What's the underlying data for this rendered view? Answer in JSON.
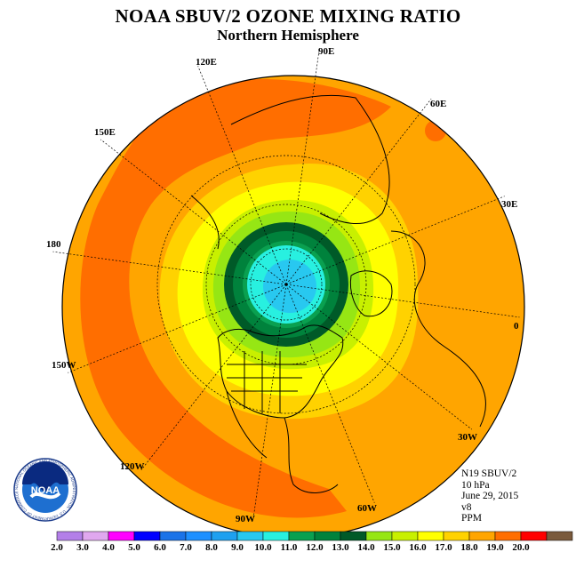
{
  "header": {
    "title": "NOAA SBUV/2 OZONE MIXING RATIO",
    "subtitle": "Northern Hemisphere"
  },
  "info": {
    "instrument": "N19 SBUV/2",
    "level": "10 hPa",
    "date": "June 29, 2015",
    "version": "v8",
    "units": "PPM"
  },
  "longitude_labels": [
    "0",
    "30E",
    "60E",
    "90E",
    "120E",
    "150E",
    "180",
    "150W",
    "120W",
    "90W",
    "60W",
    "30W"
  ],
  "logo": {
    "text": "NOAA",
    "ring_text": "NATIONAL OCEANIC AND ATMOSPHERIC ADMINISTRATION · U.S. DEPARTMENT OF COMMERCE"
  },
  "colorbar": {
    "labels": [
      "2.0",
      "3.0",
      "4.0",
      "5.0",
      "6.0",
      "7.0",
      "8.0",
      "9.0",
      "10.0",
      "11.0",
      "12.0",
      "13.0",
      "14.0",
      "15.0",
      "16.0",
      "17.0",
      "18.0",
      "19.0",
      "20.0"
    ],
    "colors": [
      "#b37fe8",
      "#e0a8ef",
      "#ff00ff",
      "#0000ff",
      "#1a73e8",
      "#1e90ff",
      "#1ea0f0",
      "#28c8f0",
      "#28f0e0",
      "#0aa050",
      "#00823c",
      "#005a28",
      "#96e614",
      "#c8f000",
      "#ffff00",
      "#ffd200",
      "#ffa500",
      "#ff6e00",
      "#ff0000",
      "#7a5a3c"
    ]
  }
}
